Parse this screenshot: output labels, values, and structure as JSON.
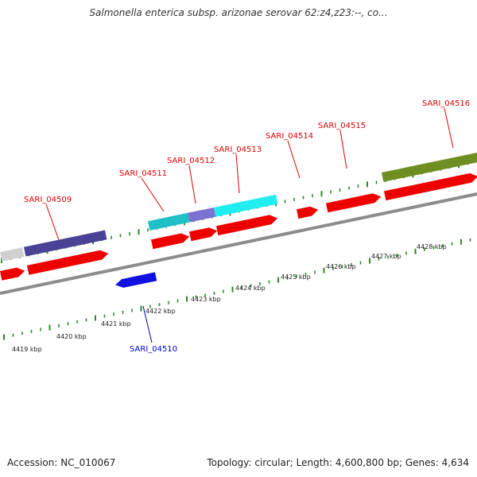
{
  "title": "Salmonella enterica subsp. arizonae serovar 62:z4,z23:--, co...",
  "footer": {
    "accession": "Accession: NC_010067",
    "summary": "Topology: circular; Length: 4,600,800 bp; Genes: 4,634"
  },
  "colors": {
    "backbone": "#8c8c8c",
    "ticks": "#2a8a2a",
    "label_forward": "#dd0000",
    "label_reverse": "#0000cc",
    "cds": "#ee0000",
    "gray_feature": "#cfcfcf",
    "navy_feature": "#4a4294",
    "blue_feature": "#1010e0",
    "teal_feature": "#20c0c8",
    "lavender_feature": "#7c72d0",
    "cyan_feature": "#20eef0",
    "olive_feature": "#6e8e22"
  },
  "kbp_labels": [
    "4419 kbp",
    "4420 kbp",
    "4421 kbp",
    "4422 kbp",
    "4423 kbp",
    "4424 kbp",
    "4425 kbp",
    "4426 kbp",
    "4427 kbp",
    "4428 kbp"
  ],
  "gene_labels": {
    "SARI_04509": "SARI_04509",
    "SARI_04510": "SARI_04510",
    "SARI_04511": "SARI_04511",
    "SARI_04512": "SARI_04512",
    "SARI_04513": "SARI_04513",
    "SARI_04514": "SARI_04514",
    "SARI_04515": "SARI_04515",
    "SARI_04516": "SARI_04516"
  }
}
